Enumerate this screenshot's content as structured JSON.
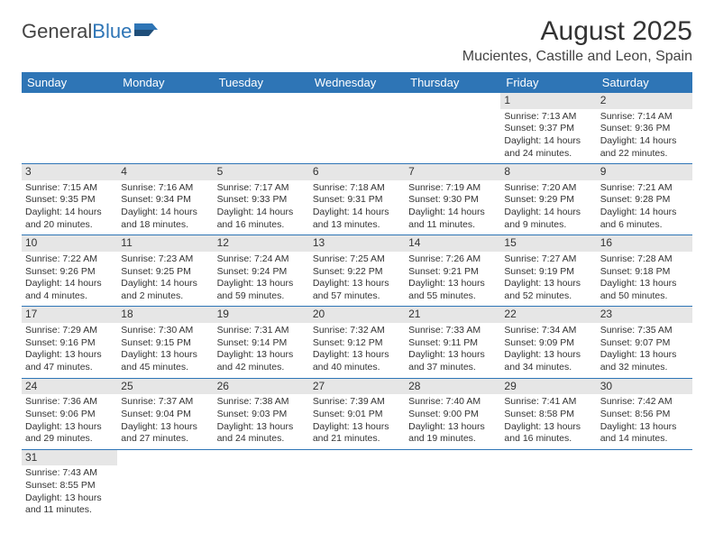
{
  "logo": {
    "text1": "General",
    "text2": "Blue"
  },
  "title": "August 2025",
  "location": "Mucientes, Castille and Leon, Spain",
  "headers": [
    "Sunday",
    "Monday",
    "Tuesday",
    "Wednesday",
    "Thursday",
    "Friday",
    "Saturday"
  ],
  "colors": {
    "header_bg": "#2e75b6",
    "header_fg": "#ffffff",
    "daynum_bg": "#e6e6e6",
    "border": "#2e75b6",
    "background": "#ffffff"
  },
  "weeks": [
    [
      null,
      null,
      null,
      null,
      null,
      {
        "n": "1",
        "sr": "Sunrise: 7:13 AM",
        "ss": "Sunset: 9:37 PM",
        "d1": "Daylight: 14 hours",
        "d2": "and 24 minutes."
      },
      {
        "n": "2",
        "sr": "Sunrise: 7:14 AM",
        "ss": "Sunset: 9:36 PM",
        "d1": "Daylight: 14 hours",
        "d2": "and 22 minutes."
      }
    ],
    [
      {
        "n": "3",
        "sr": "Sunrise: 7:15 AM",
        "ss": "Sunset: 9:35 PM",
        "d1": "Daylight: 14 hours",
        "d2": "and 20 minutes."
      },
      {
        "n": "4",
        "sr": "Sunrise: 7:16 AM",
        "ss": "Sunset: 9:34 PM",
        "d1": "Daylight: 14 hours",
        "d2": "and 18 minutes."
      },
      {
        "n": "5",
        "sr": "Sunrise: 7:17 AM",
        "ss": "Sunset: 9:33 PM",
        "d1": "Daylight: 14 hours",
        "d2": "and 16 minutes."
      },
      {
        "n": "6",
        "sr": "Sunrise: 7:18 AM",
        "ss": "Sunset: 9:31 PM",
        "d1": "Daylight: 14 hours",
        "d2": "and 13 minutes."
      },
      {
        "n": "7",
        "sr": "Sunrise: 7:19 AM",
        "ss": "Sunset: 9:30 PM",
        "d1": "Daylight: 14 hours",
        "d2": "and 11 minutes."
      },
      {
        "n": "8",
        "sr": "Sunrise: 7:20 AM",
        "ss": "Sunset: 9:29 PM",
        "d1": "Daylight: 14 hours",
        "d2": "and 9 minutes."
      },
      {
        "n": "9",
        "sr": "Sunrise: 7:21 AM",
        "ss": "Sunset: 9:28 PM",
        "d1": "Daylight: 14 hours",
        "d2": "and 6 minutes."
      }
    ],
    [
      {
        "n": "10",
        "sr": "Sunrise: 7:22 AM",
        "ss": "Sunset: 9:26 PM",
        "d1": "Daylight: 14 hours",
        "d2": "and 4 minutes."
      },
      {
        "n": "11",
        "sr": "Sunrise: 7:23 AM",
        "ss": "Sunset: 9:25 PM",
        "d1": "Daylight: 14 hours",
        "d2": "and 2 minutes."
      },
      {
        "n": "12",
        "sr": "Sunrise: 7:24 AM",
        "ss": "Sunset: 9:24 PM",
        "d1": "Daylight: 13 hours",
        "d2": "and 59 minutes."
      },
      {
        "n": "13",
        "sr": "Sunrise: 7:25 AM",
        "ss": "Sunset: 9:22 PM",
        "d1": "Daylight: 13 hours",
        "d2": "and 57 minutes."
      },
      {
        "n": "14",
        "sr": "Sunrise: 7:26 AM",
        "ss": "Sunset: 9:21 PM",
        "d1": "Daylight: 13 hours",
        "d2": "and 55 minutes."
      },
      {
        "n": "15",
        "sr": "Sunrise: 7:27 AM",
        "ss": "Sunset: 9:19 PM",
        "d1": "Daylight: 13 hours",
        "d2": "and 52 minutes."
      },
      {
        "n": "16",
        "sr": "Sunrise: 7:28 AM",
        "ss": "Sunset: 9:18 PM",
        "d1": "Daylight: 13 hours",
        "d2": "and 50 minutes."
      }
    ],
    [
      {
        "n": "17",
        "sr": "Sunrise: 7:29 AM",
        "ss": "Sunset: 9:16 PM",
        "d1": "Daylight: 13 hours",
        "d2": "and 47 minutes."
      },
      {
        "n": "18",
        "sr": "Sunrise: 7:30 AM",
        "ss": "Sunset: 9:15 PM",
        "d1": "Daylight: 13 hours",
        "d2": "and 45 minutes."
      },
      {
        "n": "19",
        "sr": "Sunrise: 7:31 AM",
        "ss": "Sunset: 9:14 PM",
        "d1": "Daylight: 13 hours",
        "d2": "and 42 minutes."
      },
      {
        "n": "20",
        "sr": "Sunrise: 7:32 AM",
        "ss": "Sunset: 9:12 PM",
        "d1": "Daylight: 13 hours",
        "d2": "and 40 minutes."
      },
      {
        "n": "21",
        "sr": "Sunrise: 7:33 AM",
        "ss": "Sunset: 9:11 PM",
        "d1": "Daylight: 13 hours",
        "d2": "and 37 minutes."
      },
      {
        "n": "22",
        "sr": "Sunrise: 7:34 AM",
        "ss": "Sunset: 9:09 PM",
        "d1": "Daylight: 13 hours",
        "d2": "and 34 minutes."
      },
      {
        "n": "23",
        "sr": "Sunrise: 7:35 AM",
        "ss": "Sunset: 9:07 PM",
        "d1": "Daylight: 13 hours",
        "d2": "and 32 minutes."
      }
    ],
    [
      {
        "n": "24",
        "sr": "Sunrise: 7:36 AM",
        "ss": "Sunset: 9:06 PM",
        "d1": "Daylight: 13 hours",
        "d2": "and 29 minutes."
      },
      {
        "n": "25",
        "sr": "Sunrise: 7:37 AM",
        "ss": "Sunset: 9:04 PM",
        "d1": "Daylight: 13 hours",
        "d2": "and 27 minutes."
      },
      {
        "n": "26",
        "sr": "Sunrise: 7:38 AM",
        "ss": "Sunset: 9:03 PM",
        "d1": "Daylight: 13 hours",
        "d2": "and 24 minutes."
      },
      {
        "n": "27",
        "sr": "Sunrise: 7:39 AM",
        "ss": "Sunset: 9:01 PM",
        "d1": "Daylight: 13 hours",
        "d2": "and 21 minutes."
      },
      {
        "n": "28",
        "sr": "Sunrise: 7:40 AM",
        "ss": "Sunset: 9:00 PM",
        "d1": "Daylight: 13 hours",
        "d2": "and 19 minutes."
      },
      {
        "n": "29",
        "sr": "Sunrise: 7:41 AM",
        "ss": "Sunset: 8:58 PM",
        "d1": "Daylight: 13 hours",
        "d2": "and 16 minutes."
      },
      {
        "n": "30",
        "sr": "Sunrise: 7:42 AM",
        "ss": "Sunset: 8:56 PM",
        "d1": "Daylight: 13 hours",
        "d2": "and 14 minutes."
      }
    ],
    [
      {
        "n": "31",
        "sr": "Sunrise: 7:43 AM",
        "ss": "Sunset: 8:55 PM",
        "d1": "Daylight: 13 hours",
        "d2": "and 11 minutes."
      },
      null,
      null,
      null,
      null,
      null,
      null
    ]
  ]
}
